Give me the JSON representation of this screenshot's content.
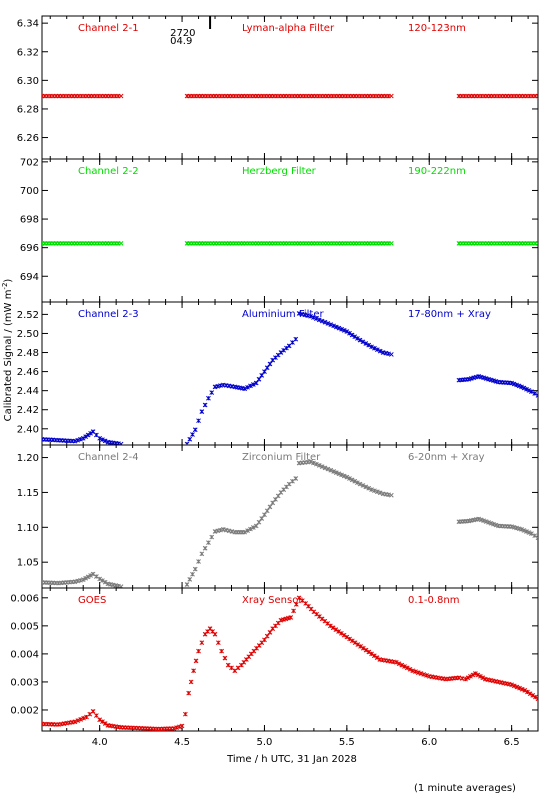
{
  "figure": {
    "ylabel": "Calibrated Signal / (mW m",
    "ylabel_exp": "-2",
    "ylabel_close": ")",
    "xlabel": "Time / h UTC, 31 Jan 2028",
    "footnote": "(1 minute averages)"
  },
  "chart_data": [
    {
      "type": "scatter",
      "marker_color": "#e00000",
      "labels": [
        "Channel 2-1",
        "Lyman-alpha Filter",
        "120-123nm"
      ],
      "ylim": [
        6.245,
        6.345
      ],
      "yticks": [
        6.26,
        6.28,
        6.3,
        6.32,
        6.34
      ],
      "ytick_labels": [
        "6.26",
        "6.28",
        "6.30",
        "6.32",
        "6.34"
      ],
      "marker_text": [
        "2720",
        "04.9"
      ],
      "marker_x": 4.67,
      "segments": [
        [
          [
            3.65,
            6.289
          ],
          [
            4.13,
            6.289
          ]
        ],
        [
          [
            4.53,
            6.289
          ],
          [
            5.77,
            6.289
          ]
        ],
        [
          [
            6.18,
            6.289
          ],
          [
            6.66,
            6.289
          ]
        ]
      ]
    },
    {
      "type": "scatter",
      "marker_color": "#00dd00",
      "labels": [
        "Channel 2-2",
        "Herzberg Filter",
        "190-222nm"
      ],
      "ylim": [
        692.2,
        702.2
      ],
      "yticks": [
        694,
        696,
        698,
        700,
        702
      ],
      "ytick_labels": [
        "694",
        "696",
        "698",
        "700",
        "702"
      ],
      "segments": [
        [
          [
            3.65,
            696.3
          ],
          [
            4.13,
            696.3
          ]
        ],
        [
          [
            4.53,
            696.3
          ],
          [
            5.77,
            696.3
          ]
        ],
        [
          [
            6.18,
            696.3
          ],
          [
            6.66,
            696.3
          ]
        ]
      ]
    },
    {
      "type": "scatter",
      "marker_color": "#0000cc",
      "labels": [
        "Channel 2-3",
        "Aluminium Filter",
        "17-80nm + Xray"
      ],
      "ylim": [
        2.383,
        2.533
      ],
      "yticks": [
        2.4,
        2.42,
        2.44,
        2.46,
        2.48,
        2.5,
        2.52
      ],
      "ytick_labels": [
        "2.40",
        "2.42",
        "2.44",
        "2.46",
        "2.48",
        "2.50",
        "2.52"
      ],
      "segments": [
        [
          [
            3.65,
            2.389
          ],
          [
            3.75,
            2.388
          ],
          [
            3.85,
            2.387
          ],
          [
            3.9,
            2.39
          ],
          [
            3.96,
            2.397
          ],
          [
            4.0,
            2.39
          ],
          [
            4.05,
            2.386
          ],
          [
            4.13,
            2.384
          ]
        ],
        [
          [
            4.53,
            2.384
          ],
          [
            4.58,
            2.399
          ],
          [
            4.62,
            2.418
          ],
          [
            4.66,
            2.432
          ],
          [
            4.7,
            2.444
          ],
          [
            4.75,
            2.446
          ],
          [
            4.82,
            2.444
          ],
          [
            4.88,
            2.442
          ],
          [
            4.95,
            2.448
          ],
          [
            5.0,
            2.46
          ],
          [
            5.05,
            2.472
          ],
          [
            5.1,
            2.48
          ],
          [
            5.15,
            2.487
          ],
          [
            5.19,
            2.494
          ],
          [
            5.21,
            2.521
          ],
          [
            5.28,
            2.518
          ],
          [
            5.35,
            2.513
          ],
          [
            5.42,
            2.508
          ],
          [
            5.5,
            2.502
          ],
          [
            5.58,
            2.493
          ],
          [
            5.65,
            2.486
          ],
          [
            5.72,
            2.48
          ],
          [
            5.77,
            2.478
          ]
        ],
        [
          [
            6.18,
            2.451
          ],
          [
            6.24,
            2.452
          ],
          [
            6.3,
            2.455
          ],
          [
            6.36,
            2.452
          ],
          [
            6.42,
            2.449
          ],
          [
            6.5,
            2.448
          ],
          [
            6.56,
            2.444
          ],
          [
            6.62,
            2.439
          ],
          [
            6.66,
            2.435
          ]
        ]
      ]
    },
    {
      "type": "scatter",
      "marker_color": "#7a7a7a",
      "labels": [
        "Channel 2-4",
        "Zirconium Filter",
        "6-20nm + Xray"
      ],
      "ylim": [
        1.013,
        1.218
      ],
      "yticks": [
        1.05,
        1.1,
        1.15,
        1.2
      ],
      "ytick_labels": [
        "1.05",
        "1.10",
        "1.15",
        "1.20"
      ],
      "segments": [
        [
          [
            3.65,
            1.021
          ],
          [
            3.75,
            1.02
          ],
          [
            3.85,
            1.022
          ],
          [
            3.9,
            1.025
          ],
          [
            3.96,
            1.033
          ],
          [
            4.0,
            1.026
          ],
          [
            4.05,
            1.019
          ],
          [
            4.13,
            1.015
          ]
        ],
        [
          [
            4.53,
            1.018
          ],
          [
            4.58,
            1.04
          ],
          [
            4.62,
            1.062
          ],
          [
            4.66,
            1.078
          ],
          [
            4.7,
            1.094
          ],
          [
            4.75,
            1.097
          ],
          [
            4.82,
            1.093
          ],
          [
            4.88,
            1.093
          ],
          [
            4.95,
            1.102
          ],
          [
            5.0,
            1.118
          ],
          [
            5.05,
            1.135
          ],
          [
            5.1,
            1.15
          ],
          [
            5.15,
            1.162
          ],
          [
            5.19,
            1.17
          ],
          [
            5.21,
            1.192
          ],
          [
            5.28,
            1.194
          ],
          [
            5.35,
            1.187
          ],
          [
            5.42,
            1.18
          ],
          [
            5.5,
            1.172
          ],
          [
            5.58,
            1.162
          ],
          [
            5.65,
            1.154
          ],
          [
            5.72,
            1.148
          ],
          [
            5.77,
            1.146
          ]
        ],
        [
          [
            6.18,
            1.108
          ],
          [
            6.24,
            1.109
          ],
          [
            6.3,
            1.112
          ],
          [
            6.36,
            1.107
          ],
          [
            6.42,
            1.102
          ],
          [
            6.5,
            1.101
          ],
          [
            6.56,
            1.097
          ],
          [
            6.62,
            1.091
          ],
          [
            6.66,
            1.085
          ]
        ]
      ]
    },
    {
      "type": "scatter",
      "marker_color": "#e00000",
      "labels": [
        "GOES",
        "Xray Sensor",
        "0.1-0.8nm"
      ],
      "ylim": [
        0.00125,
        0.00635
      ],
      "yticks": [
        0.002,
        0.003,
        0.004,
        0.005,
        0.006
      ],
      "ytick_labels": [
        "0.002",
        "0.003",
        "0.004",
        "0.005",
        "0.006"
      ],
      "xlim": [
        3.65,
        6.66
      ],
      "xticks": [
        4.0,
        4.5,
        5.0,
        5.5,
        6.0,
        6.5
      ],
      "xtick_labels": [
        "4.0",
        "4.5",
        "5.0",
        "5.5",
        "6.0",
        "6.5"
      ],
      "segments": [
        [
          [
            3.65,
            0.0015
          ],
          [
            3.75,
            0.00148
          ],
          [
            3.85,
            0.00158
          ],
          [
            3.92,
            0.00175
          ],
          [
            3.96,
            0.00195
          ],
          [
            4.0,
            0.00165
          ],
          [
            4.05,
            0.00145
          ],
          [
            4.13,
            0.00138
          ],
          [
            4.25,
            0.00135
          ],
          [
            4.35,
            0.00132
          ],
          [
            4.45,
            0.00134
          ],
          [
            4.5,
            0.00143
          ],
          [
            4.52,
            0.00185
          ],
          [
            4.54,
            0.0026
          ],
          [
            4.57,
            0.0034
          ],
          [
            4.6,
            0.0041
          ],
          [
            4.64,
            0.0047
          ],
          [
            4.67,
            0.0049
          ],
          [
            4.7,
            0.0047
          ],
          [
            4.74,
            0.0041
          ],
          [
            4.78,
            0.0036
          ],
          [
            4.82,
            0.0034
          ],
          [
            4.86,
            0.0036
          ],
          [
            4.92,
            0.004
          ],
          [
            5.0,
            0.0045
          ],
          [
            5.05,
            0.0049
          ],
          [
            5.1,
            0.0052
          ],
          [
            5.16,
            0.0053
          ],
          [
            5.21,
            0.006
          ],
          [
            5.25,
            0.0058
          ],
          [
            5.3,
            0.0055
          ],
          [
            5.4,
            0.005
          ],
          [
            5.5,
            0.0046
          ],
          [
            5.6,
            0.0042
          ],
          [
            5.7,
            0.0038
          ],
          [
            5.8,
            0.0037
          ],
          [
            5.9,
            0.0034
          ],
          [
            6.0,
            0.0032
          ],
          [
            6.1,
            0.0031
          ],
          [
            6.18,
            0.00315
          ],
          [
            6.22,
            0.0031
          ],
          [
            6.28,
            0.0033
          ],
          [
            6.34,
            0.0031
          ],
          [
            6.42,
            0.003
          ],
          [
            6.5,
            0.0029
          ],
          [
            6.58,
            0.0027
          ],
          [
            6.66,
            0.0024
          ]
        ]
      ]
    }
  ]
}
